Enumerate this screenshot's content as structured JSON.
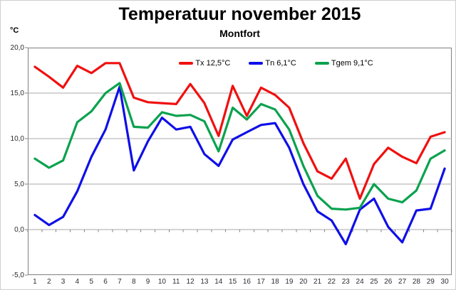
{
  "title": "Temperatuur november 2015",
  "subtitle": "Montfort",
  "y_axis_unit": "°C",
  "legend": [
    {
      "label": "Tx 12,5°C",
      "color": "#f01010"
    },
    {
      "label": "Tn 6,1°C",
      "color": "#0f0fe8"
    },
    {
      "label": "Tgem 9,1°C",
      "color": "#0aa24e"
    }
  ],
  "colors": {
    "grid": "#a9a9a9",
    "plot_border": "#808080",
    "tick": "#808080"
  },
  "chart_data": {
    "type": "line",
    "title": "Temperatuur november 2015",
    "subtitle": "Montfort",
    "ylabel": "°C",
    "xlabel": "",
    "ylim": [
      -5,
      20
    ],
    "grid": true,
    "legend_position": "top-center-inside",
    "y_ticks": [
      20,
      15,
      10,
      5,
      0,
      -5
    ],
    "y_tick_labels": [
      "20,0",
      "15,0",
      "10,0",
      "5,0",
      "0,0",
      "-5,0"
    ],
    "categories": [
      "1",
      "2",
      "3",
      "4",
      "5",
      "6",
      "7",
      "8",
      "9",
      "10",
      "11",
      "12",
      "13",
      "14",
      "15",
      "16",
      "17",
      "18",
      "19",
      "20",
      "21",
      "22",
      "23",
      "24",
      "25",
      "26",
      "27",
      "28",
      "29",
      "30"
    ],
    "series": [
      {
        "name": "Tx",
        "legend_label": "Tx 12,5°C",
        "mean": "12,5°C",
        "color": "#f01010",
        "values": [
          17.9,
          16.8,
          15.6,
          18.0,
          17.2,
          18.3,
          18.3,
          14.5,
          14.0,
          13.9,
          13.8,
          16.0,
          13.9,
          10.3,
          15.8,
          12.5,
          15.6,
          14.8,
          13.4,
          9.5,
          6.4,
          5.6,
          7.8,
          3.4,
          7.2,
          9.0,
          8.0,
          7.3,
          10.2,
          10.7
        ]
      },
      {
        "name": "Tn",
        "legend_label": "Tn 6,1°C",
        "mean": "6,1°C",
        "color": "#0f0fe8",
        "values": [
          1.6,
          0.5,
          1.4,
          4.2,
          8.0,
          11.0,
          15.7,
          6.5,
          9.7,
          12.3,
          11.0,
          11.3,
          8.3,
          7.0,
          9.9,
          10.7,
          11.5,
          11.7,
          9.0,
          5.0,
          2.0,
          1.0,
          -1.6,
          2.2,
          3.4,
          0.3,
          -1.4,
          2.1,
          2.3,
          6.7
        ]
      },
      {
        "name": "Tgem",
        "legend_label": "Tgem 9,1°C",
        "mean": "9,1°C",
        "color": "#0aa24e",
        "values": [
          7.8,
          6.8,
          7.6,
          11.8,
          13.0,
          15.0,
          16.1,
          11.3,
          11.2,
          12.9,
          12.5,
          12.6,
          11.9,
          8.6,
          13.4,
          12.1,
          13.8,
          13.2,
          11.0,
          7.0,
          3.7,
          2.3,
          2.2,
          2.4,
          5.0,
          3.4,
          3.0,
          4.3,
          7.8,
          8.7
        ]
      }
    ]
  }
}
